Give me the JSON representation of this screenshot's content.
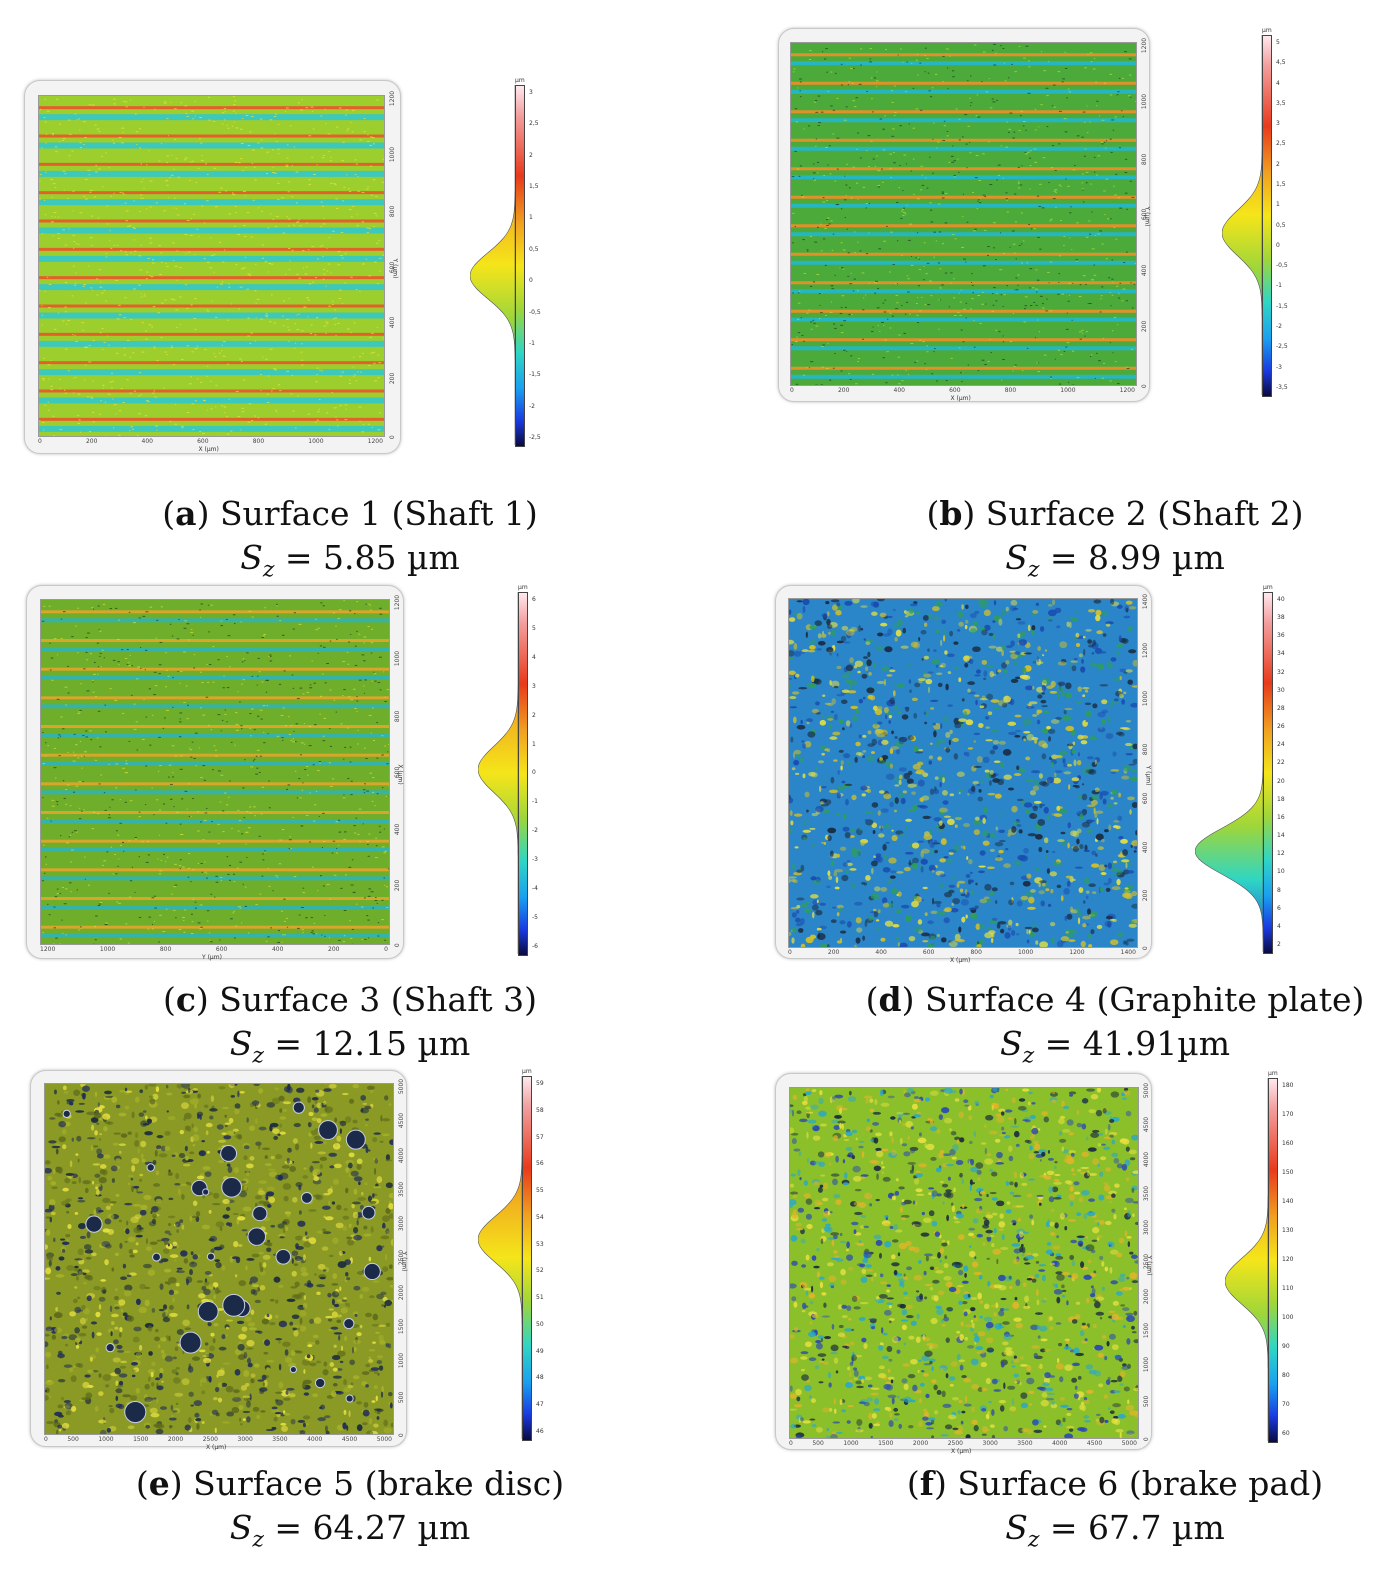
{
  "panels": [
    {
      "letter": "a",
      "caption": "Surface 1 (Shaft 1)",
      "sz_symbol": "S",
      "sz_sub": "z",
      "sz_value": "= 5.85 µm",
      "x_label": "X (µm)",
      "y_label": "Y (µm)",
      "x_ticks": [
        "0",
        "200",
        "400",
        "600",
        "800",
        "1000",
        "1200"
      ],
      "y_ticks": [
        "1200",
        "1000",
        "800",
        "600",
        "400",
        "200",
        "0"
      ],
      "scale_ticks": [
        "3",
        "2,5",
        "2",
        "1,5",
        "1",
        "0,5",
        "0",
        "-0,5",
        "-1",
        "-1,5",
        "-2",
        "-2,5"
      ],
      "scale_unit": "µm",
      "texture": "stripes",
      "hist_peak": 0.53,
      "colors": {
        "base": "#9ccf2e",
        "stripe1": "#e2602a",
        "stripe2": "#2cc7d4",
        "speck": "#f1e23a"
      }
    },
    {
      "letter": "b",
      "caption": "Surface 2 (Shaft 2)",
      "sz_symbol": "S",
      "sz_sub": "z",
      "sz_value": "= 8.99 µm",
      "x_label": "X (µm)",
      "y_label": "Y (µm)",
      "x_ticks": [
        "0",
        "200",
        "400",
        "600",
        "800",
        "1000",
        "1200"
      ],
      "y_ticks": [
        "1200",
        "1000",
        "800",
        "600",
        "400",
        "200",
        "0"
      ],
      "scale_ticks": [
        "5",
        "4,5",
        "4",
        "3,5",
        "3",
        "2,5",
        "2",
        "1,5",
        "1",
        "0,5",
        "0",
        "-0,5",
        "-1",
        "-1,5",
        "-2",
        "-2,5",
        "-3",
        "-3,5"
      ],
      "scale_unit": "µm",
      "texture": "stripes-dark",
      "hist_peak": 0.55,
      "colors": {
        "base": "#4caa3a",
        "stripe1": "#e2902a",
        "stripe2": "#1fb9d8",
        "speck": "#b7e03a"
      }
    },
    {
      "letter": "c",
      "caption": "Surface 3 (Shaft 3)",
      "sz_symbol": "S",
      "sz_sub": "z",
      "sz_value": "= 12.15 µm",
      "x_label": "Y (µm)",
      "y_label": "X (µm)",
      "x_ticks": [
        "1200",
        "1000",
        "800",
        "600",
        "400",
        "200",
        "0"
      ],
      "y_ticks": [
        "1200",
        "1000",
        "800",
        "600",
        "400",
        "200",
        "0"
      ],
      "scale_ticks": [
        "6",
        "5",
        "4",
        "3",
        "2",
        "1",
        "0",
        "-1",
        "-2",
        "-3",
        "-4",
        "-5",
        "-6"
      ],
      "scale_unit": "µm",
      "texture": "stripes-dark",
      "hist_peak": 0.49,
      "colors": {
        "base": "#6fae2a",
        "stripe1": "#d9a52a",
        "stripe2": "#2bb4c0",
        "speck": "#d6e03a"
      }
    },
    {
      "letter": "d",
      "caption": "Surface 4 (Graphite plate)",
      "sz_symbol": "S",
      "sz_sub": "z",
      "sz_value": "= 41.91µm",
      "x_label": "X (µm)",
      "y_label": "Y (µm)",
      "x_ticks": [
        "0",
        "200",
        "400",
        "600",
        "800",
        "1000",
        "1200",
        "1400"
      ],
      "y_ticks": [
        "1400",
        "1200",
        "1000",
        "800",
        "600",
        "400",
        "200",
        "0"
      ],
      "scale_ticks": [
        "40",
        "38",
        "36",
        "34",
        "32",
        "30",
        "28",
        "26",
        "24",
        "22",
        "20",
        "18",
        "16",
        "14",
        "12",
        "10",
        "8",
        "6",
        "4",
        "2"
      ],
      "scale_unit": "µm",
      "texture": "grain-blue",
      "hist_peak": 0.72,
      "colors": {
        "base": "#2a86c8",
        "stripe1": "#2e9e5a",
        "stripe2": "#1a4bb0",
        "speck": "#d2c02a"
      }
    },
    {
      "letter": "e",
      "caption": "Surface 5 (brake disc)",
      "sz_symbol": "S",
      "sz_sub": "z",
      "sz_value": "= 64.27 µm",
      "x_label": "X (µm)",
      "y_label": "Y (µm)",
      "x_ticks": [
        "0",
        "500",
        "1000",
        "1500",
        "2000",
        "2500",
        "3000",
        "3500",
        "4000",
        "4500",
        "5000"
      ],
      "y_ticks": [
        "5000",
        "4500",
        "4000",
        "3500",
        "3000",
        "2500",
        "2000",
        "1500",
        "1000",
        "500",
        "0"
      ],
      "scale_ticks": [
        "59",
        "58",
        "57",
        "56",
        "55",
        "54",
        "53",
        "52",
        "51",
        "50",
        "49",
        "48",
        "47",
        "46"
      ],
      "scale_unit": "µm",
      "texture": "grain-olive",
      "hist_peak": 0.45,
      "colors": {
        "base": "#8a9a24",
        "stripe1": "#a8b22a",
        "stripe2": "#5e6a1c",
        "speck": "#1e2a5a"
      }
    },
    {
      "letter": "f",
      "caption": "Surface 6 (brake pad)",
      "sz_symbol": "S",
      "sz_sub": "z",
      "sz_value": "= 67.7 µm",
      "x_label": "X (µm)",
      "y_label": "Y (µm)",
      "x_ticks": [
        "0",
        "500",
        "1000",
        "1500",
        "2000",
        "2500",
        "3000",
        "3500",
        "4000",
        "4500",
        "5000"
      ],
      "y_ticks": [
        "5000",
        "4500",
        "4000",
        "3500",
        "3000",
        "2500",
        "2000",
        "1500",
        "1000",
        "500",
        "0"
      ],
      "scale_ticks": [
        "180",
        "170",
        "160",
        "150",
        "140",
        "130",
        "120",
        "110",
        "100",
        "90",
        "80",
        "70",
        "60"
      ],
      "scale_unit": "µm",
      "texture": "grain-mixed",
      "hist_peak": 0.56,
      "colors": {
        "base": "#8cc02a",
        "stripe1": "#2aa8c8",
        "stripe2": "#e0b42a",
        "speck": "#2a4ab0"
      }
    }
  ]
}
